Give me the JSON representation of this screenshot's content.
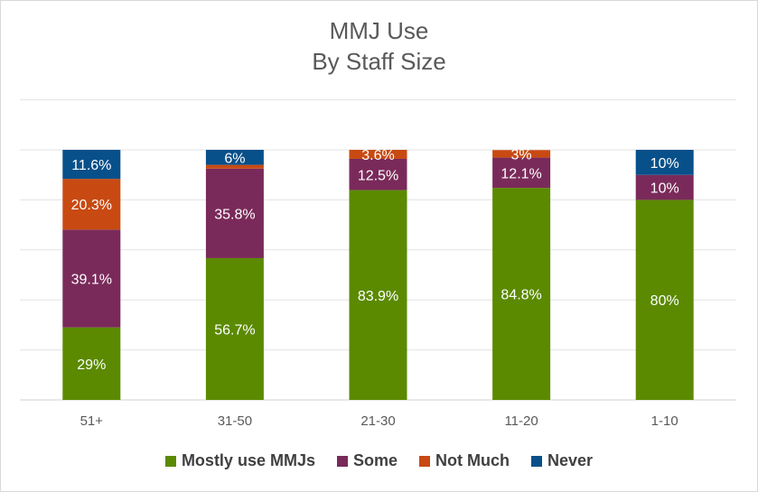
{
  "chart_data": {
    "type": "bar",
    "stacked": true,
    "title": "MMJ Use",
    "subtitle": "By Staff Size",
    "categories": [
      "51+",
      "31-50",
      "21-30",
      "11-20",
      "1-10"
    ],
    "series": [
      {
        "name": "Mostly use MMJs",
        "color": "#5b8a00",
        "values": [
          29,
          56.7,
          83.9,
          84.8,
          80
        ],
        "labels": [
          "29%",
          "56.7%",
          "83.9%",
          "84.8%",
          "80%"
        ]
      },
      {
        "name": "Some",
        "color": "#7a2a5a",
        "values": [
          39.1,
          35.8,
          12.5,
          12.1,
          10
        ],
        "labels": [
          "39.1%",
          "35.8%",
          "12.5%",
          "12.1%",
          "10%"
        ]
      },
      {
        "name": "Not Much",
        "color": "#c84a12",
        "values": [
          20.3,
          1.5,
          3.6,
          3,
          0
        ],
        "labels": [
          "20.3%",
          "",
          "3.6%",
          "3%",
          ""
        ]
      },
      {
        "name": "Never",
        "color": "#08508a",
        "values": [
          11.6,
          6,
          0,
          0,
          10
        ],
        "labels": [
          "11.6%",
          "6%",
          "",
          "",
          "10%"
        ]
      }
    ],
    "ylim": [
      0,
      100
    ],
    "grid": true,
    "legend_position": "bottom"
  }
}
